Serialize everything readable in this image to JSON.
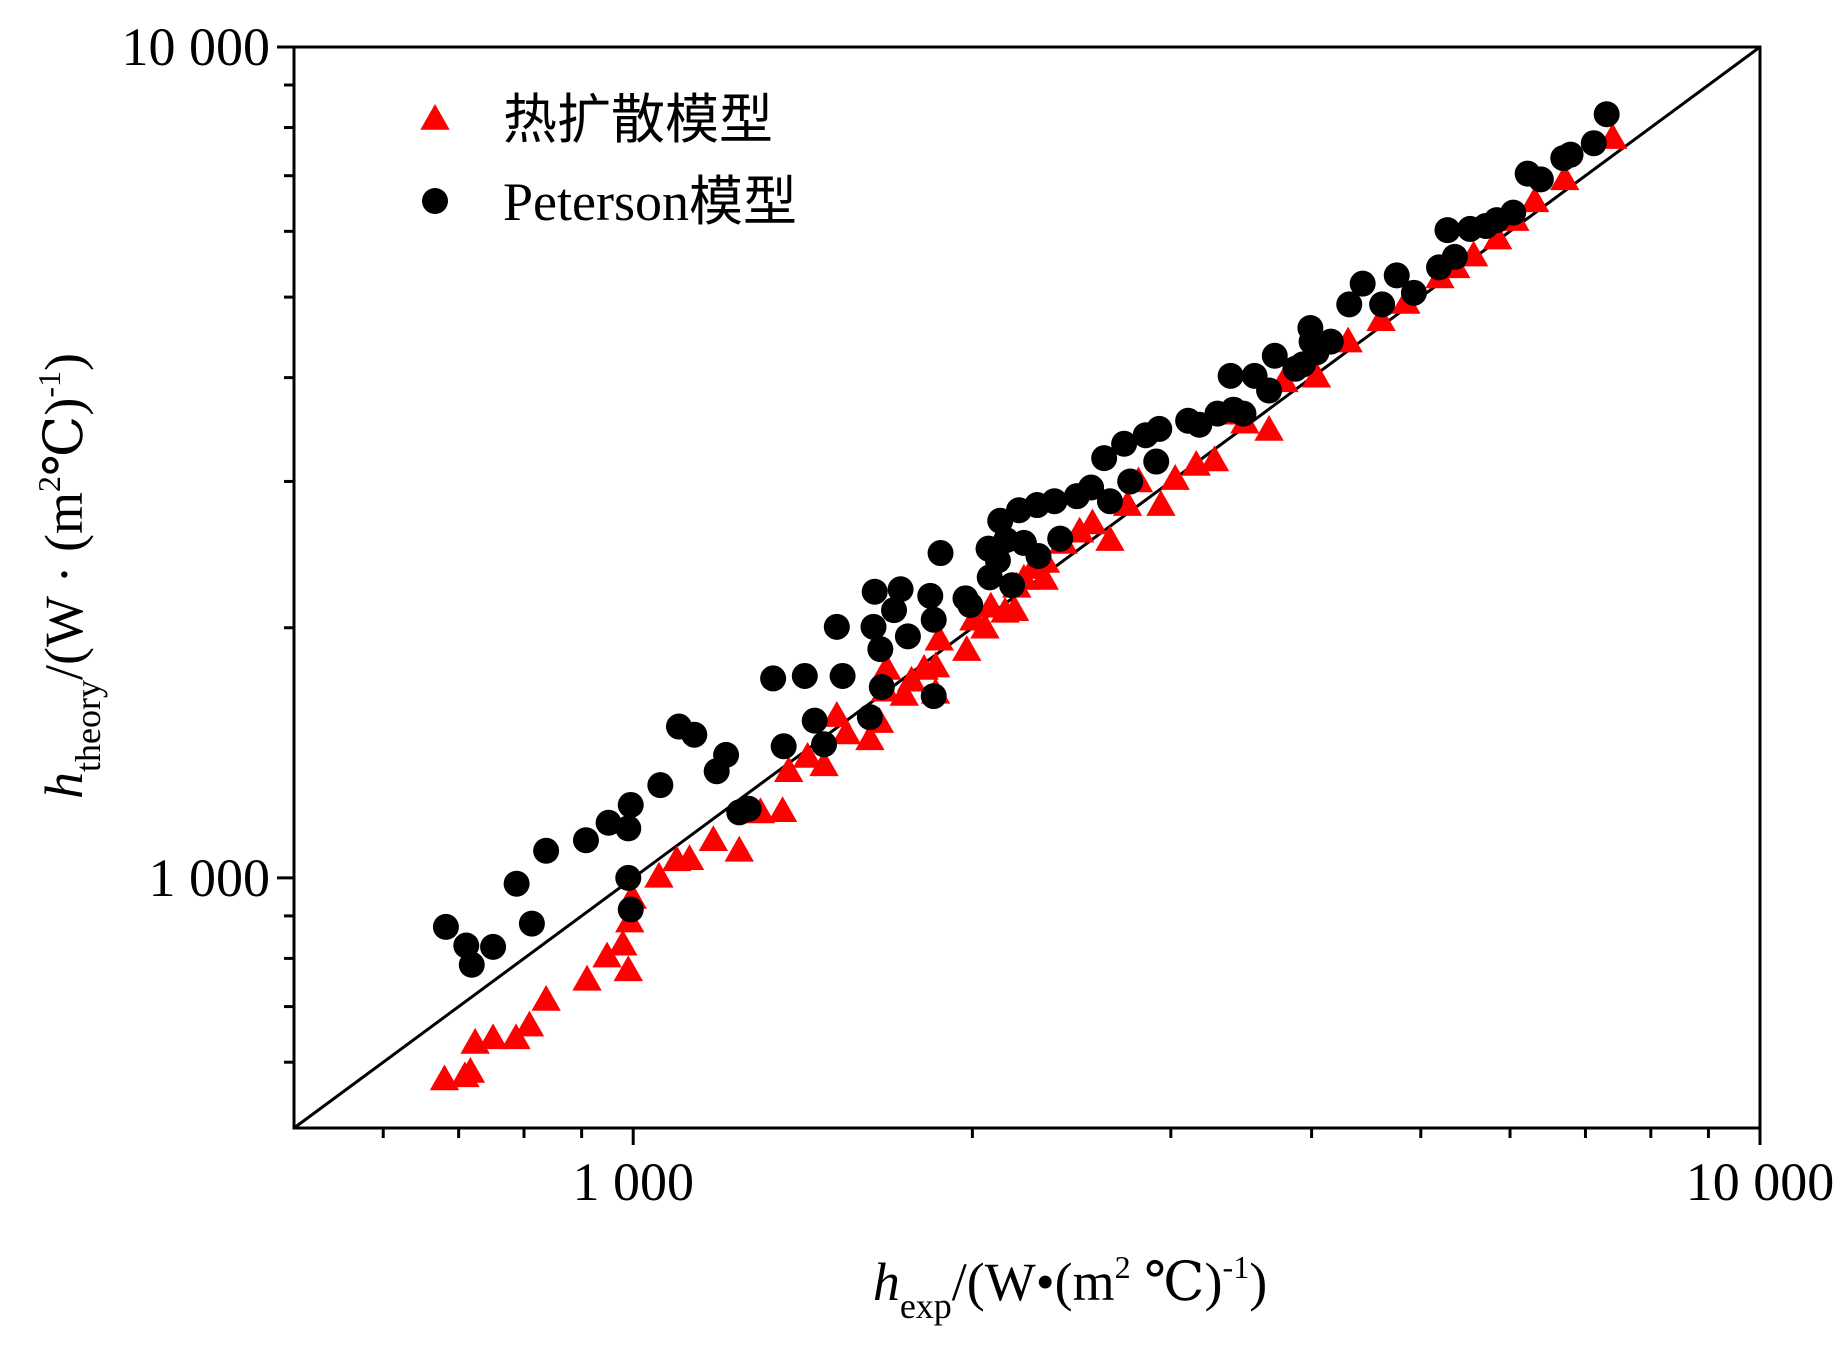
{
  "chart_data": {
    "type": "scatter",
    "x_scale": "log",
    "y_scale": "log",
    "xlim": [
      500,
      10000
    ],
    "ylim": [
      500,
      10000
    ],
    "xticks": [
      {
        "value": 1000,
        "label": "1 000"
      },
      {
        "value": 10000,
        "label": "10 000"
      }
    ],
    "yticks": [
      {
        "value": 1000,
        "label": "1 000"
      },
      {
        "value": 10000,
        "label": "10 000"
      }
    ],
    "xminor_ticks": [
      600,
      700,
      800,
      900,
      2000,
      3000,
      4000,
      5000,
      6000,
      7000,
      8000,
      9000
    ],
    "yminor_ticks": [
      600,
      700,
      800,
      900,
      2000,
      3000,
      4000,
      5000,
      6000,
      7000,
      8000,
      9000
    ],
    "xlabel": [
      {
        "text": "h",
        "style": "italic"
      },
      {
        "text": "exp",
        "style": "sub"
      },
      {
        "text": "/(W•(m",
        "style": "normal"
      },
      {
        "text": "2",
        "style": "sup"
      },
      {
        "text": " ℃)",
        "style": "normal"
      },
      {
        "text": "-1",
        "style": "sup"
      },
      {
        "text": ")",
        "style": "normal"
      }
    ],
    "ylabel": [
      {
        "text": "h",
        "style": "italic"
      },
      {
        "text": "theory",
        "style": "sub"
      },
      {
        "text": "/(W · (m",
        "style": "normal"
      },
      {
        "text": "2",
        "style": "sup"
      },
      {
        "text": "℃)",
        "style": "normal"
      },
      {
        "text": "-1",
        "style": "sup"
      },
      {
        "text": ")",
        "style": "normal"
      }
    ],
    "diagonal": true,
    "legend": "upper left",
    "series": [
      {
        "name": "热扩散模型",
        "color": "#ff0000",
        "marker": "triangle",
        "x": [
          680,
          709,
          717,
          724,
          751,
          787,
          809,
          837,
          910,
          948,
          979,
          990,
          993,
          998,
          1054,
          1093,
          1122,
          1178,
          1242,
          1297,
          1357,
          1374,
          1428,
          1477,
          1516,
          1546,
          1622,
          1654,
          1674,
          1679,
          1740,
          1766,
          1812,
          1855,
          1855,
          1869,
          1977,
          2006,
          2052,
          2077,
          2138,
          2180,
          2190,
          2222,
          2266,
          2316,
          2322,
          2408,
          2490,
          2556,
          2649,
          2746,
          2808,
          2940,
          3027,
          3160,
          3280,
          3360,
          3490,
          3667,
          3780,
          4040,
          4310,
          4610,
          4850,
          5200,
          5370,
          5570,
          5850,
          6060,
          6310,
          6710,
          7400
        ],
        "values": [
          572,
          577,
          584,
          633,
          641,
          641,
          664,
          713,
          754,
          804,
          831,
          774,
          886,
          946,
          1003,
          1050,
          1053,
          1110,
          1078,
          1199,
          1203,
          1344,
          1398,
          1366,
          1566,
          1492,
          1468,
          1540,
          1680,
          1784,
          1660,
          1727,
          1784,
          1796,
          1670,
          1935,
          1880,
          2045,
          2000,
          2120,
          2090,
          2100,
          2240,
          2290,
          2360,
          2290,
          2400,
          2530,
          2610,
          2670,
          2550,
          2810,
          3000,
          2810,
          3020,
          3140,
          3180,
          3620,
          3530,
          3460,
          3960,
          4010,
          4420,
          4690,
          4920,
          5280,
          5430,
          5610,
          5880,
          6190,
          6520,
          6930,
          7770
        ]
      },
      {
        "name": "Peterson模型",
        "color": "#000000",
        "marker": "circle",
        "x": [
          682,
          711,
          719,
          751,
          788,
          813,
          837,
          908,
          951,
          990,
          995,
          990,
          995,
          1057,
          1098,
          1133,
          1186,
          1209,
          1242,
          1266,
          1331,
          1360,
          1420,
          1449,
          1477,
          1516,
          1534,
          1622,
          1638,
          1634,
          1657,
          1662,
          1704,
          1727,
          1753,
          1835,
          1848,
          1848,
          1874,
          1972,
          1991,
          2067,
          2072,
          2107,
          2117,
          2143,
          2169,
          2200,
          2222,
          2283,
          2289,
          2365,
          2393,
          2476,
          2549,
          2618,
          2649,
          2727,
          2761,
          2850,
          2912,
          2930,
          3108,
          3180,
          3300,
          3390,
          3410,
          3480,
          3560,
          3667,
          3710,
          3870,
          3930,
          3990,
          4000,
          4040,
          4160,
          4320,
          4440,
          4620,
          4760,
          4930,
          5190,
          5280,
          5360,
          5530,
          5710,
          5840,
          6040,
          6220,
          6390,
          6690,
          6790,
          7120,
          7310
        ],
        "values": [
          873,
          829,
          786,
          826,
          984,
          881,
          1078,
          1110,
          1165,
          1147,
          1224,
          1000,
          916,
          1293,
          1521,
          1487,
          1344,
          1406,
          1199,
          1211,
          1738,
          1440,
          1750,
          1546,
          1448,
          2005,
          1750,
          1561,
          2210,
          2005,
          1885,
          1697,
          2100,
          2225,
          1953,
          2185,
          2045,
          1655,
          2460,
          2170,
          2130,
          2490,
          2300,
          2410,
          2690,
          2550,
          2250,
          2770,
          2530,
          2810,
          2440,
          2840,
          2560,
          2880,
          2950,
          3200,
          2840,
          3330,
          3000,
          3410,
          3170,
          3470,
          3550,
          3510,
          3620,
          4020,
          3660,
          3620,
          4020,
          3860,
          4250,
          4100,
          4150,
          4590,
          4420,
          4290,
          4420,
          4900,
          5190,
          4900,
          5310,
          5060,
          5430,
          6020,
          5590,
          6040,
          6090,
          6190,
          6320,
          7040,
          6930,
          7350,
          7420,
          7660,
          8300
        ]
      }
    ]
  }
}
